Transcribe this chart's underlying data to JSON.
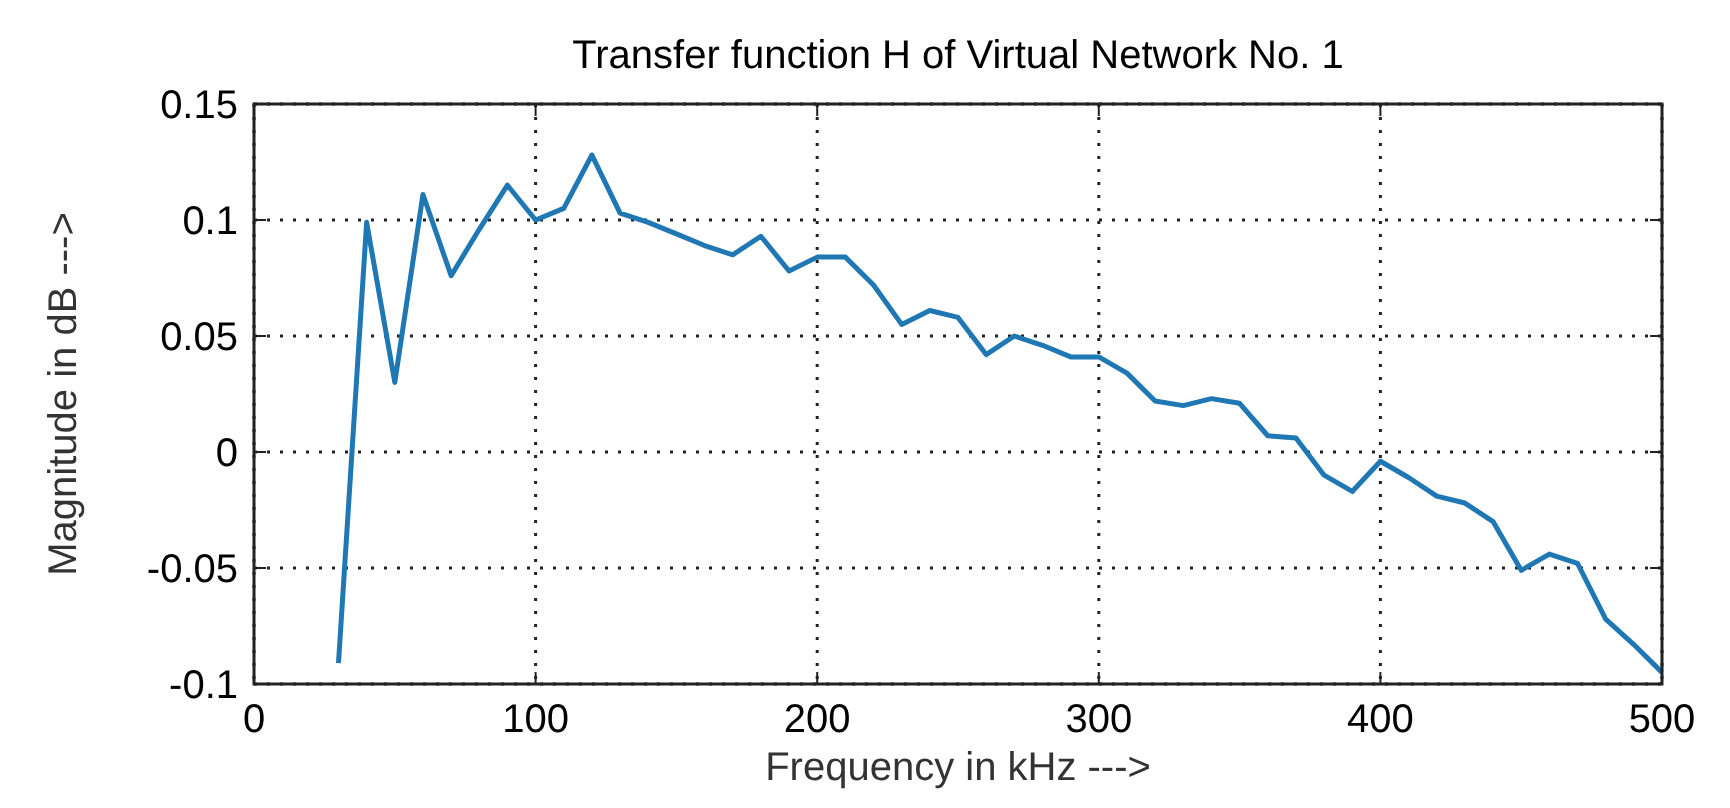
{
  "chart_data": {
    "type": "line",
    "title": "Transfer function H of Virtual Network No. 1",
    "xlabel": "Frequency in kHz --->",
    "ylabel": "Magnitude in dB --->",
    "x": [
      30,
      40,
      50,
      60,
      70,
      80,
      90,
      100,
      110,
      120,
      130,
      140,
      150,
      160,
      170,
      180,
      190,
      200,
      210,
      220,
      230,
      240,
      250,
      260,
      270,
      280,
      290,
      300,
      310,
      320,
      330,
      340,
      350,
      360,
      370,
      380,
      390,
      400,
      410,
      420,
      430,
      440,
      450,
      460,
      470,
      480,
      490,
      500
    ],
    "series": [
      {
        "color": "#1f77b4",
        "values": [
          -0.091,
          0.099,
          0.03,
          0.111,
          0.076,
          0.096,
          0.115,
          0.1,
          0.105,
          0.128,
          0.103,
          0.099,
          0.094,
          0.089,
          0.085,
          0.093,
          0.078,
          0.084,
          0.084,
          0.072,
          0.055,
          0.061,
          0.058,
          0.042,
          0.05,
          0.046,
          0.041,
          0.041,
          0.034,
          0.022,
          0.02,
          0.023,
          0.021,
          0.007,
          0.006,
          -0.01,
          -0.017,
          -0.004,
          -0.011,
          -0.019,
          -0.022,
          -0.03,
          -0.051,
          -0.044,
          -0.048,
          -0.072,
          -0.083,
          -0.095
        ]
      }
    ],
    "xlim": [
      0,
      500
    ],
    "xticks": [
      0,
      100,
      200,
      300,
      400,
      500
    ],
    "ylim": [
      -0.1,
      0.15
    ],
    "yticks": [
      -0.1,
      -0.05,
      0,
      0.05,
      0.1,
      0.15
    ],
    "grid": true,
    "marker": "none",
    "line_style": "solid"
  }
}
